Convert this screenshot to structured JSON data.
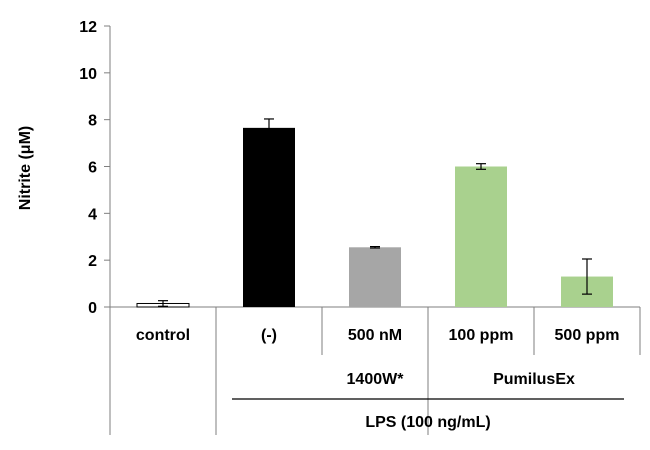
{
  "chart_data": {
    "type": "bar",
    "title": "",
    "ylabel": "Nitrite (μM)",
    "xlabel": "",
    "ylim": [
      0,
      12
    ],
    "yticks": [
      0,
      2,
      4,
      6,
      8,
      10,
      12
    ],
    "grid": false,
    "categories": [
      "control",
      "(-)",
      "500 nM",
      "100 ppm",
      "500 ppm"
    ],
    "values": [
      0.15,
      7.65,
      2.55,
      6.0,
      1.3
    ],
    "errors": [
      0.12,
      0.38,
      0.03,
      0.12,
      0.75
    ],
    "colors": [
      "#ffffff",
      "#000000",
      "#a6a6a6",
      "#a9d18e",
      "#a9d18e"
    ],
    "group_labels": [
      {
        "label": "1400W*",
        "from": 2,
        "to": 2
      },
      {
        "label": "PumilusEx",
        "from": 3,
        "to": 4
      }
    ],
    "outer_group": {
      "label": "LPS (100 ng/mL)",
      "from": 1,
      "to": 4
    }
  }
}
